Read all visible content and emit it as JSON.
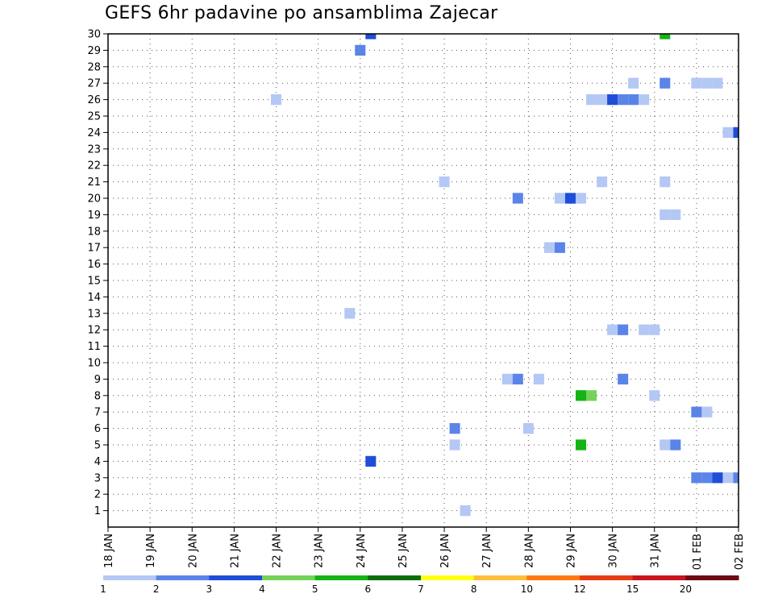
{
  "chart_data": {
    "type": "heatmap",
    "title": "GEFS 6hr padavine po ansamblima Zajecar",
    "x_tick_labels": [
      "18 JAN",
      "19 JAN",
      "20 JAN",
      "21 JAN",
      "22 JAN",
      "23 JAN",
      "24 JAN",
      "25 JAN",
      "26 JAN",
      "27 JAN",
      "28 JAN",
      "29 JAN",
      "30 JAN",
      "31 JAN",
      "01 FEB",
      "02 FEB"
    ],
    "y_tick_labels": [
      "1",
      "2",
      "3",
      "4",
      "5",
      "6",
      "7",
      "8",
      "9",
      "10",
      "11",
      "12",
      "13",
      "14",
      "15",
      "16",
      "17",
      "18",
      "19",
      "20",
      "21",
      "22",
      "23",
      "24",
      "25",
      "26",
      "27",
      "28",
      "29",
      "30"
    ],
    "x_range_days": [
      0,
      15
    ],
    "y_range": [
      0,
      30
    ],
    "grid": "dotted",
    "legend_position": "bottom",
    "colorbar": {
      "labels": [
        "1",
        "2",
        "3",
        "4",
        "5",
        "6",
        "7",
        "8",
        "10",
        "12",
        "15",
        "20"
      ],
      "colors": [
        "#b4c8f5",
        "#5a84e8",
        "#1e4ed8",
        "#73d25a",
        "#14b414",
        "#0a6e0a",
        "#ffff14",
        "#ffbe3c",
        "#ff7814",
        "#e63c14",
        "#c8141e",
        "#6e0a14"
      ]
    },
    "cells": [
      {
        "day": "24 JAN",
        "hour": 6,
        "member": 30,
        "color": "#1e4ed8"
      },
      {
        "day": "31 JAN",
        "hour": 6,
        "member": 30,
        "color": "#14b414"
      },
      {
        "day": "24 JAN",
        "hour": 0,
        "member": 29,
        "color": "#5a84e8"
      },
      {
        "day": "30 JAN",
        "hour": 12,
        "member": 27,
        "color": "#b4c8f5"
      },
      {
        "day": "31 JAN",
        "hour": 6,
        "member": 27,
        "color": "#5a84e8"
      },
      {
        "day": "01 FEB",
        "hour": 0,
        "member": 27,
        "color": "#b4c8f5"
      },
      {
        "day": "01 FEB",
        "hour": 6,
        "member": 27,
        "color": "#b4c8f5"
      },
      {
        "day": "01 FEB",
        "hour": 12,
        "member": 27,
        "color": "#b4c8f5"
      },
      {
        "day": "22 JAN",
        "hour": 0,
        "member": 26,
        "color": "#b4c8f5"
      },
      {
        "day": "29 JAN",
        "hour": 12,
        "member": 26,
        "color": "#b4c8f5"
      },
      {
        "day": "29 JAN",
        "hour": 18,
        "member": 26,
        "color": "#b4c8f5"
      },
      {
        "day": "30 JAN",
        "hour": 0,
        "member": 26,
        "color": "#1e4ed8"
      },
      {
        "day": "30 JAN",
        "hour": 6,
        "member": 26,
        "color": "#5a84e8"
      },
      {
        "day": "30 JAN",
        "hour": 12,
        "member": 26,
        "color": "#5a84e8"
      },
      {
        "day": "30 JAN",
        "hour": 18,
        "member": 26,
        "color": "#b4c8f5"
      },
      {
        "day": "01 FEB",
        "hour": 18,
        "member": 24,
        "color": "#b4c8f5"
      },
      {
        "day": "02 FEB",
        "hour": 0,
        "member": 24,
        "color": "#1e4ed8"
      },
      {
        "day": "02 FEB",
        "hour": 6,
        "member": 24,
        "color": "#5a84e8"
      },
      {
        "day": "26 JAN",
        "hour": 0,
        "member": 21,
        "color": "#b4c8f5"
      },
      {
        "day": "29 JAN",
        "hour": 18,
        "member": 21,
        "color": "#b4c8f5"
      },
      {
        "day": "31 JAN",
        "hour": 6,
        "member": 21,
        "color": "#b4c8f5"
      },
      {
        "day": "27 JAN",
        "hour": 18,
        "member": 20,
        "color": "#5a84e8"
      },
      {
        "day": "28 JAN",
        "hour": 18,
        "member": 20,
        "color": "#b4c8f5"
      },
      {
        "day": "29 JAN",
        "hour": 0,
        "member": 20,
        "color": "#1e4ed8"
      },
      {
        "day": "29 JAN",
        "hour": 6,
        "member": 20,
        "color": "#b4c8f5"
      },
      {
        "day": "31 JAN",
        "hour": 6,
        "member": 19,
        "color": "#b4c8f5"
      },
      {
        "day": "31 JAN",
        "hour": 12,
        "member": 19,
        "color": "#b4c8f5"
      },
      {
        "day": "28 JAN",
        "hour": 12,
        "member": 17,
        "color": "#b4c8f5"
      },
      {
        "day": "28 JAN",
        "hour": 18,
        "member": 17,
        "color": "#5a84e8"
      },
      {
        "day": "23 JAN",
        "hour": 18,
        "member": 13,
        "color": "#b4c8f5"
      },
      {
        "day": "30 JAN",
        "hour": 0,
        "member": 12,
        "color": "#b4c8f5"
      },
      {
        "day": "30 JAN",
        "hour": 6,
        "member": 12,
        "color": "#5a84e8"
      },
      {
        "day": "30 JAN",
        "hour": 18,
        "member": 12,
        "color": "#b4c8f5"
      },
      {
        "day": "31 JAN",
        "hour": 0,
        "member": 12,
        "color": "#b4c8f5"
      },
      {
        "day": "27 JAN",
        "hour": 12,
        "member": 9,
        "color": "#b4c8f5"
      },
      {
        "day": "27 JAN",
        "hour": 18,
        "member": 9,
        "color": "#5a84e8"
      },
      {
        "day": "28 JAN",
        "hour": 6,
        "member": 9,
        "color": "#b4c8f5"
      },
      {
        "day": "30 JAN",
        "hour": 6,
        "member": 9,
        "color": "#5a84e8"
      },
      {
        "day": "29 JAN",
        "hour": 6,
        "member": 8,
        "color": "#14b414"
      },
      {
        "day": "29 JAN",
        "hour": 12,
        "member": 8,
        "color": "#73d25a"
      },
      {
        "day": "31 JAN",
        "hour": 0,
        "member": 8,
        "color": "#b4c8f5"
      },
      {
        "day": "01 FEB",
        "hour": 0,
        "member": 7,
        "color": "#5a84e8"
      },
      {
        "day": "01 FEB",
        "hour": 6,
        "member": 7,
        "color": "#b4c8f5"
      },
      {
        "day": "26 JAN",
        "hour": 6,
        "member": 6,
        "color": "#5a84e8"
      },
      {
        "day": "28 JAN",
        "hour": 0,
        "member": 6,
        "color": "#b4c8f5"
      },
      {
        "day": "26 JAN",
        "hour": 6,
        "member": 5,
        "color": "#b4c8f5"
      },
      {
        "day": "29 JAN",
        "hour": 6,
        "member": 5,
        "color": "#14b414"
      },
      {
        "day": "31 JAN",
        "hour": 6,
        "member": 5,
        "color": "#b4c8f5"
      },
      {
        "day": "31 JAN",
        "hour": 12,
        "member": 5,
        "color": "#5a84e8"
      },
      {
        "day": "24 JAN",
        "hour": 6,
        "member": 4,
        "color": "#1e4ed8"
      },
      {
        "day": "01 FEB",
        "hour": 0,
        "member": 3,
        "color": "#5a84e8"
      },
      {
        "day": "01 FEB",
        "hour": 6,
        "member": 3,
        "color": "#5a84e8"
      },
      {
        "day": "01 FEB",
        "hour": 12,
        "member": 3,
        "color": "#1e4ed8"
      },
      {
        "day": "01 FEB",
        "hour": 18,
        "member": 3,
        "color": "#b4c8f5"
      },
      {
        "day": "02 FEB",
        "hour": 0,
        "member": 3,
        "color": "#5a84e8"
      },
      {
        "day": "26 JAN",
        "hour": 12,
        "member": 1,
        "color": "#b4c8f5"
      }
    ]
  }
}
